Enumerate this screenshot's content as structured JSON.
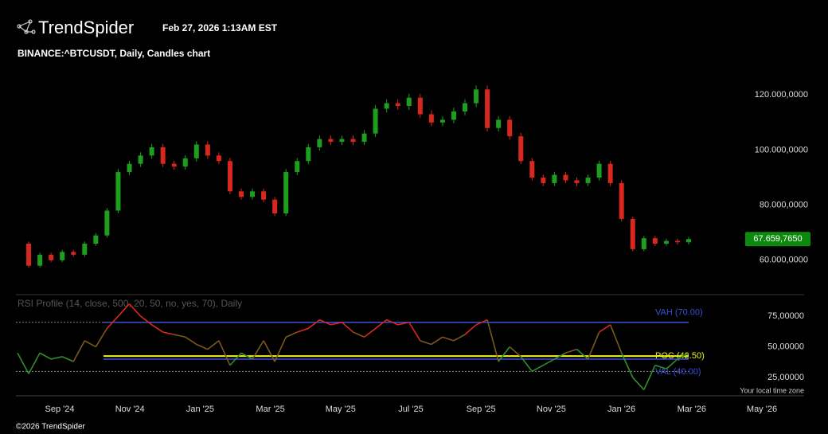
{
  "brand": "TrendSpider",
  "timestamp": "Feb 27, 2026 1:13AM EST",
  "footer": "©2026 TrendSpider",
  "timezone_note": "Your local time zone",
  "chart_data": [
    {
      "type": "candlestick",
      "title": "BINANCE:^BTCUSDT, Daily, Candles chart",
      "up_color": "#1e9e1e",
      "down_color": "#d8281e",
      "ylim": [
        47500,
        129900
      ],
      "yticks": [
        {
          "value": 60000,
          "label": "60.000,0000"
        },
        {
          "value": 80000,
          "label": "80.000,0000"
        },
        {
          "value": 100000,
          "label": "100.000,0000"
        },
        {
          "value": 120000,
          "label": "120.000,0000"
        }
      ],
      "last_price": {
        "value": 67659.765,
        "label": "67.659,7650",
        "color": "#0d8a0d"
      },
      "values": [
        66000,
        58000,
        62000,
        60000,
        63000,
        62000,
        66000,
        69000,
        78000,
        92000,
        95000,
        98000,
        101000,
        95000,
        94000,
        97000,
        102000,
        98000,
        96000,
        85000,
        83000,
        85000,
        82000,
        77000,
        92000,
        96000,
        101000,
        104000,
        103000,
        104000,
        103000,
        106000,
        115000,
        117000,
        116000,
        119000,
        113000,
        110000,
        111000,
        114000,
        117000,
        122000,
        108000,
        111000,
        105000,
        96000,
        90000,
        88000,
        91000,
        89000,
        88000,
        90000,
        95000,
        88000,
        75000,
        64000,
        68000,
        66000,
        67000,
        66500,
        67659.765
      ]
    },
    {
      "type": "line",
      "title": "RSI Profile (14, close, 500, 20, 50, no, yes, 70), Daily",
      "ylim": [
        11.4,
        89.3
      ],
      "yticks": [
        {
          "value": 25,
          "label": "25,00000"
        },
        {
          "value": 50,
          "label": "50,00000"
        },
        {
          "value": 75,
          "label": "75,00000"
        }
      ],
      "guides": [
        70,
        30
      ],
      "levels": [
        {
          "name": "VAH (70.00)",
          "value": 70,
          "color": "#3a4fd6"
        },
        {
          "name": "POC (42.50)",
          "value": 42.5,
          "color": "#f2f21a"
        },
        {
          "name": "VAL (40.00)",
          "value": 40,
          "color": "#3a4fd6"
        }
      ],
      "values": [
        45,
        28,
        45,
        40,
        42,
        38,
        55,
        50,
        65,
        75,
        85,
        75,
        68,
        62,
        60,
        58,
        52,
        48,
        55,
        35,
        45,
        40,
        55,
        38,
        58,
        62,
        65,
        72,
        68,
        70,
        62,
        58,
        65,
        72,
        68,
        70,
        55,
        52,
        58,
        55,
        60,
        68,
        72,
        38,
        50,
        42,
        30,
        35,
        40,
        45,
        48,
        40,
        62,
        68,
        45,
        25,
        15,
        35,
        32,
        40,
        45
      ]
    }
  ],
  "x_labels": [
    "Sep '24",
    "Nov '24",
    "Jan '25",
    "Mar '25",
    "May '25",
    "Jul '25",
    "Sep '25",
    "Nov '25",
    "Jan '26",
    "Mar '26",
    "May '26"
  ]
}
